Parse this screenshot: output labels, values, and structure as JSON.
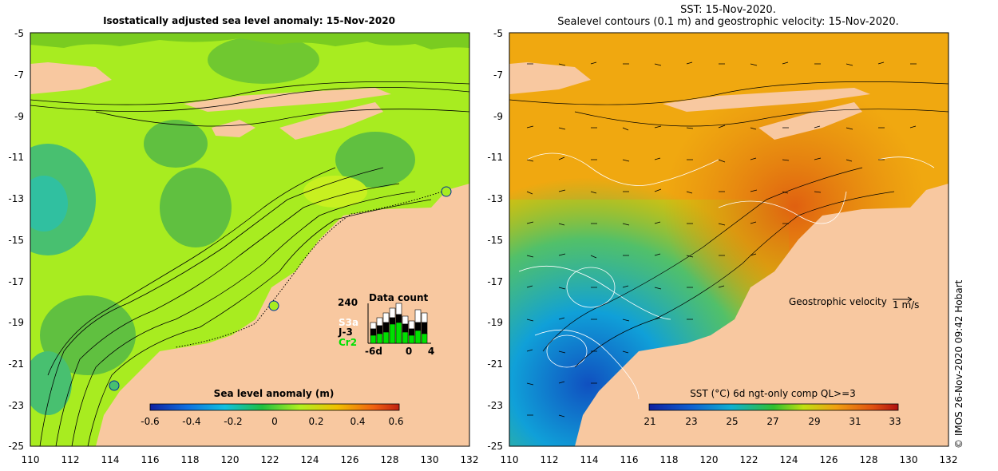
{
  "left_panel": {
    "title": "Isostatically adjusted sea level anomaly: 15-Nov-2020",
    "y_ticks": [
      "-5",
      "-7",
      "-9",
      "-11",
      "-13",
      "-15",
      "-17",
      "-19",
      "-21",
      "-23",
      "-25"
    ],
    "x_ticks": [
      "110",
      "112",
      "114",
      "116",
      "118",
      "120",
      "122",
      "124",
      "126",
      "128",
      "130",
      "132"
    ],
    "colorbar": {
      "label": "Sea level anomaly (m)",
      "ticks": [
        "-0.6",
        "-0.4",
        "-0.2",
        "0",
        "0.2",
        "0.4",
        "0.6"
      ]
    },
    "data_count": {
      "title": "Data count",
      "max_label": "240",
      "x_ticks": [
        "-6d",
        "0",
        "4"
      ],
      "missions": [
        "S3a",
        "J-3",
        "Cr2"
      ],
      "colors": {
        "S3a": "#ffffff",
        "J-3": "#000000",
        "Cr2": "#00e000"
      }
    }
  },
  "right_panel": {
    "title_line1": "SST: 15-Nov-2020.",
    "title_line2": "Sealevel contours (0.1 m) and geostrophic velocity: 15-Nov-2020.",
    "y_ticks": [
      "-5",
      "-7",
      "-9",
      "-11",
      "-13",
      "-15",
      "-17",
      "-19",
      "-21",
      "-23",
      "-25"
    ],
    "x_ticks": [
      "110",
      "112",
      "114",
      "116",
      "118",
      "120",
      "122",
      "124",
      "126",
      "128",
      "130",
      "132"
    ],
    "velocity_legend": {
      "label": "Geostrophic velocity",
      "scale": "1 m/s"
    },
    "colorbar": {
      "label": "SST (°C) 6d ngt-only comp QL>=3",
      "ticks": [
        "21",
        "23",
        "25",
        "27",
        "29",
        "31",
        "33"
      ]
    }
  },
  "credit": "© IMOS 26-Nov-2020 09:42 Hobart",
  "colors": {
    "land": "#f8c8a0",
    "slab_green": "#66cc22",
    "sst_orange": "#f0a010"
  }
}
